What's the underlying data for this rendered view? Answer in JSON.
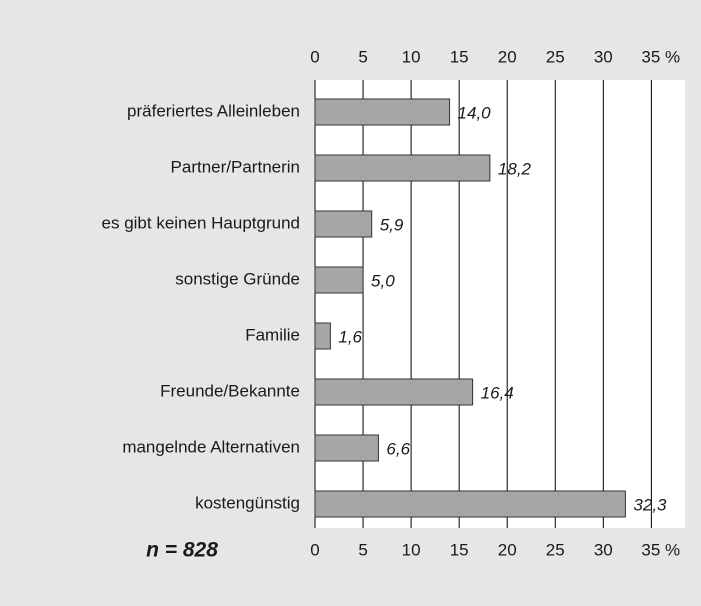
{
  "chart_data": {
    "type": "bar",
    "orientation": "horizontal",
    "categories": [
      "präferiertes Alleinleben",
      "Partner/Partnerin",
      "es gibt keinen Hauptgrund",
      "sonstige Gründe",
      "Familie",
      "Freunde/Bekannte",
      "mangelnde Alternativen",
      "kostengünstig"
    ],
    "values": [
      14.0,
      18.2,
      5.9,
      5.0,
      1.6,
      16.4,
      6.6,
      32.3
    ],
    "value_labels": [
      "14,0",
      "18,2",
      "5,9",
      "5,0",
      "1,6",
      "16,4",
      "6,6",
      "32,3"
    ],
    "color": "#a6a6a6",
    "xlim": [
      0,
      38.5
    ],
    "xticks": [
      0,
      5,
      10,
      15,
      20,
      25,
      30,
      {
        "value": 35,
        "label": "35 %"
      }
    ],
    "grid": true,
    "annotation": "n = 828"
  }
}
